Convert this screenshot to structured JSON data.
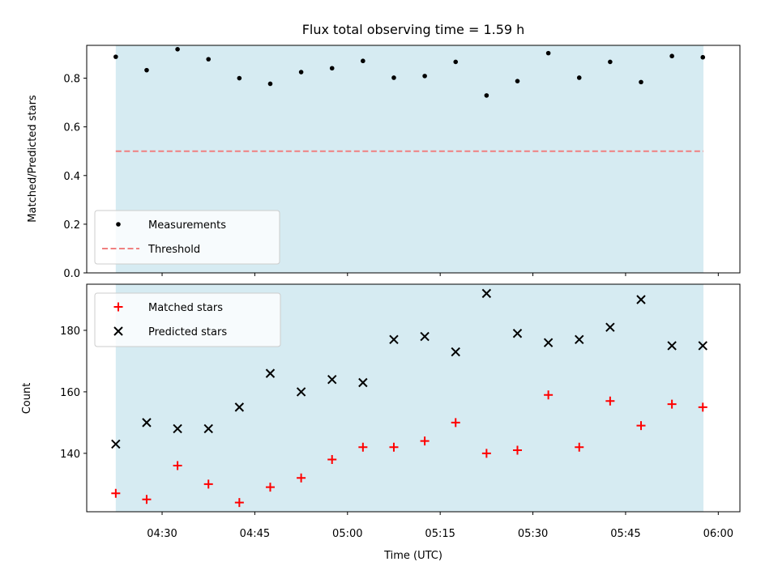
{
  "chart_data": {
    "title": "Flux total observing time = 1.59 h",
    "xlabel": "Time (UTC)",
    "x_ticks": [
      "04:30",
      "04:45",
      "05:00",
      "05:15",
      "05:30",
      "05:45",
      "06:00"
    ],
    "x_tick_minutes": [
      270,
      285,
      300,
      315,
      330,
      345,
      360
    ],
    "xlim": [
      257.8,
      363.5
    ],
    "span": [
      262.5,
      357.6
    ],
    "span_color": "#add8e6",
    "panels": [
      {
        "type": "scatter",
        "ylabel": "Matched/Predicted stars",
        "ylim": [
          0,
          0.935
        ],
        "y_ticks": [
          0.0,
          0.2,
          0.4,
          0.6,
          0.8
        ],
        "y_tick_labels": [
          "0.0",
          "0.2",
          "0.4",
          "0.6",
          "0.8"
        ],
        "legend": {
          "position": "lower-left",
          "entries": [
            {
              "label": "Measurements",
              "marker": "dot",
              "color": "#000000"
            },
            {
              "label": "Threshold",
              "marker": "dashed-line",
              "color": "#f08080"
            }
          ]
        },
        "series": [
          {
            "name": "Measurements",
            "marker": "dot",
            "color": "#000000",
            "x": [
              262.5,
              267.5,
              272.5,
              277.5,
              282.5,
              287.5,
              292.5,
              297.5,
              302.5,
              307.5,
              312.5,
              317.5,
              322.5,
              327.5,
              332.5,
              337.5,
              342.5,
              347.5,
              352.5,
              357.5
            ],
            "y": [
              0.888,
              0.833,
              0.919,
              0.878,
              0.8,
              0.777,
              0.825,
              0.841,
              0.871,
              0.802,
              0.809,
              0.867,
              0.729,
              0.788,
              0.903,
              0.802,
              0.867,
              0.784,
              0.891,
              0.886
            ]
          }
        ],
        "threshold": {
          "name": "Threshold",
          "y": 0.5,
          "color": "#f08080"
        }
      },
      {
        "type": "scatter",
        "ylabel": "Count",
        "ylim": [
          121,
          195
        ],
        "y_ticks": [
          140,
          160,
          180
        ],
        "y_tick_labels": [
          "140",
          "160",
          "180"
        ],
        "legend": {
          "position": "top-left",
          "entries": [
            {
              "label": "Matched stars",
              "marker": "plus",
              "color": "#ff0000"
            },
            {
              "label": "Predicted stars",
              "marker": "x",
              "color": "#000000"
            }
          ]
        },
        "series": [
          {
            "name": "Matched stars",
            "marker": "plus",
            "color": "#ff0000",
            "x": [
              262.5,
              267.5,
              272.5,
              277.5,
              282.5,
              287.5,
              292.5,
              297.5,
              302.5,
              307.5,
              312.5,
              317.5,
              322.5,
              327.5,
              332.5,
              337.5,
              342.5,
              347.5,
              352.5,
              357.5
            ],
            "y": [
              127,
              125,
              136,
              130,
              124,
              129,
              132,
              138,
              142,
              142,
              144,
              150,
              140,
              141,
              159,
              142,
              157,
              149,
              156,
              155
            ]
          },
          {
            "name": "Predicted stars",
            "marker": "x",
            "color": "#000000",
            "x": [
              262.5,
              267.5,
              272.5,
              277.5,
              282.5,
              287.5,
              292.5,
              297.5,
              302.5,
              307.5,
              312.5,
              317.5,
              322.5,
              327.5,
              332.5,
              337.5,
              342.5,
              347.5,
              352.5,
              357.5
            ],
            "y": [
              143,
              150,
              148,
              148,
              155,
              166,
              160,
              164,
              163,
              177,
              178,
              173,
              192,
              179,
              176,
              177,
              181,
              190,
              175,
              175
            ]
          }
        ]
      }
    ]
  }
}
